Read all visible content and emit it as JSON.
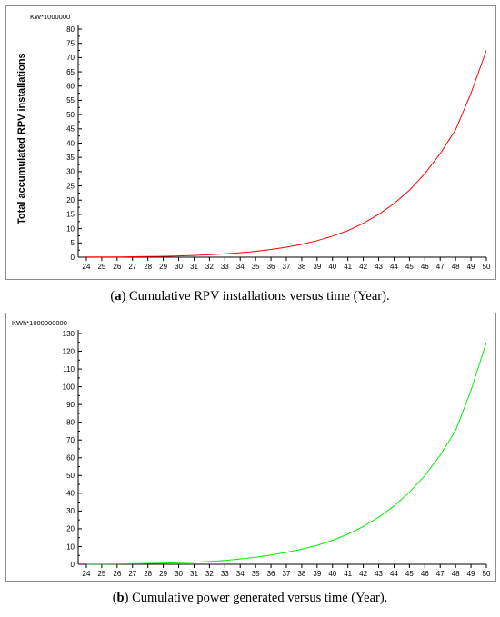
{
  "chart_data": [
    {
      "type": "line",
      "unit_label": "KW*1000000",
      "ylabel": "Total accumulated RPV installations",
      "xlabel": "",
      "categories": [
        "24",
        "25",
        "26",
        "27",
        "28",
        "29",
        "30",
        "31",
        "32",
        "33",
        "34",
        "35",
        "36",
        "37",
        "38",
        "39",
        "40",
        "41",
        "42",
        "43",
        "44",
        "45",
        "46",
        "47",
        "48",
        "49",
        "50"
      ],
      "ylim": [
        0,
        80
      ],
      "yticks": [
        0,
        5,
        10,
        15,
        20,
        25,
        30,
        35,
        40,
        45,
        50,
        55,
        60,
        65,
        70,
        75,
        80
      ],
      "series": [
        {
          "color": "#ff0000",
          "values": [
            0.05,
            0.07,
            0.1,
            0.15,
            0.22,
            0.3,
            0.45,
            0.62,
            0.85,
            1.15,
            1.55,
            2.05,
            2.7,
            3.5,
            4.5,
            5.8,
            7.4,
            9.3,
            11.9,
            15.0,
            18.8,
            23.5,
            29.3,
            36.3,
            44.7,
            57.5,
            72.5
          ]
        }
      ],
      "caption_tag": "a",
      "caption_text": " Cumulative RPV installations versus time (Year)."
    },
    {
      "type": "line",
      "unit_label": "KWh*1000000000",
      "ylabel": "",
      "xlabel": "",
      "categories": [
        "24",
        "25",
        "26",
        "27",
        "28",
        "29",
        "30",
        "31",
        "32",
        "33",
        "34",
        "35",
        "36",
        "37",
        "38",
        "39",
        "40",
        "41",
        "42",
        "43",
        "44",
        "45",
        "46",
        "47",
        "48",
        "49",
        "50"
      ],
      "ylim": [
        0,
        130
      ],
      "yticks": [
        0,
        10,
        20,
        30,
        40,
        50,
        60,
        70,
        80,
        90,
        100,
        110,
        120,
        130
      ],
      "series": [
        {
          "color": "#00ee00",
          "values": [
            0.1,
            0.15,
            0.2,
            0.3,
            0.45,
            0.6,
            0.85,
            1.2,
            1.6,
            2.2,
            3.0,
            4.0,
            5.2,
            6.7,
            8.5,
            10.7,
            13.5,
            17.0,
            21.3,
            26.5,
            32.9,
            40.6,
            50.0,
            61.4,
            75.4,
            98.0,
            125.0
          ]
        }
      ],
      "caption_tag": "b",
      "caption_text": " Cumulative power generated versus time (Year)."
    }
  ]
}
